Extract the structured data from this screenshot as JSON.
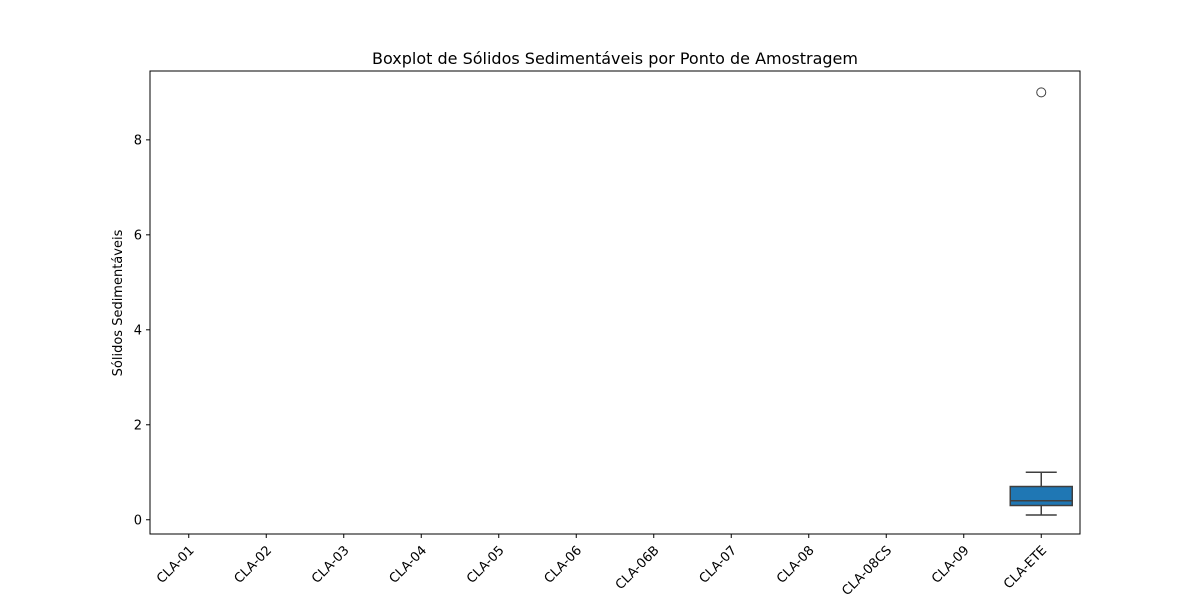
{
  "chart_data": {
    "type": "box",
    "title": "Boxplot de Sólidos Sedimentáveis por Ponto de Amostragem",
    "xlabel": "",
    "ylabel": "Sólidos Sedimentáveis",
    "categories": [
      "CLA-01",
      "CLA-02",
      "CLA-03",
      "CLA-04",
      "CLA-05",
      "CLA-06",
      "CLA-06B",
      "CLA-07",
      "CLA-08",
      "CLA-08CS",
      "CLA-09",
      "CLA-ETE"
    ],
    "ylim": [
      -0.3,
      9.45
    ],
    "yticks": [
      0,
      2,
      4,
      6,
      8
    ],
    "grid": false,
    "box_color": "#1f77b4",
    "edge_color": "#3f3f3f",
    "boxes": [
      {
        "category": "CLA-01",
        "min": 0,
        "q1": 0,
        "median": 0,
        "q3": 0,
        "max": 0,
        "outliers": []
      },
      {
        "category": "CLA-02",
        "min": 0,
        "q1": 0,
        "median": 0,
        "q3": 0,
        "max": 0,
        "outliers": []
      },
      {
        "category": "CLA-03",
        "min": 0,
        "q1": 0,
        "median": 0,
        "q3": 0,
        "max": 0,
        "outliers": []
      },
      {
        "category": "CLA-04",
        "min": 0,
        "q1": 0,
        "median": 0,
        "q3": 0,
        "max": 0,
        "outliers": []
      },
      {
        "category": "CLA-05",
        "min": 0,
        "q1": 0,
        "median": 0,
        "q3": 0,
        "max": 0,
        "outliers": []
      },
      {
        "category": "CLA-06",
        "min": 0,
        "q1": 0,
        "median": 0,
        "q3": 0,
        "max": 0,
        "outliers": []
      },
      {
        "category": "CLA-06B",
        "min": 0,
        "q1": 0,
        "median": 0,
        "q3": 0,
        "max": 0,
        "outliers": []
      },
      {
        "category": "CLA-07",
        "min": 0,
        "q1": 0,
        "median": 0,
        "q3": 0,
        "max": 0,
        "outliers": []
      },
      {
        "category": "CLA-08",
        "min": 0,
        "q1": 0,
        "median": 0,
        "q3": 0,
        "max": 0,
        "outliers": []
      },
      {
        "category": "CLA-08CS",
        "min": 0,
        "q1": 0,
        "median": 0,
        "q3": 0,
        "max": 0,
        "outliers": []
      },
      {
        "category": "CLA-09",
        "min": 0,
        "q1": 0,
        "median": 0,
        "q3": 0,
        "max": 0,
        "outliers": []
      },
      {
        "category": "CLA-ETE",
        "min": 0.1,
        "q1": 0.3,
        "median": 0.4,
        "q3": 0.7,
        "max": 1.0,
        "outliers": [
          9.0
        ]
      }
    ]
  }
}
